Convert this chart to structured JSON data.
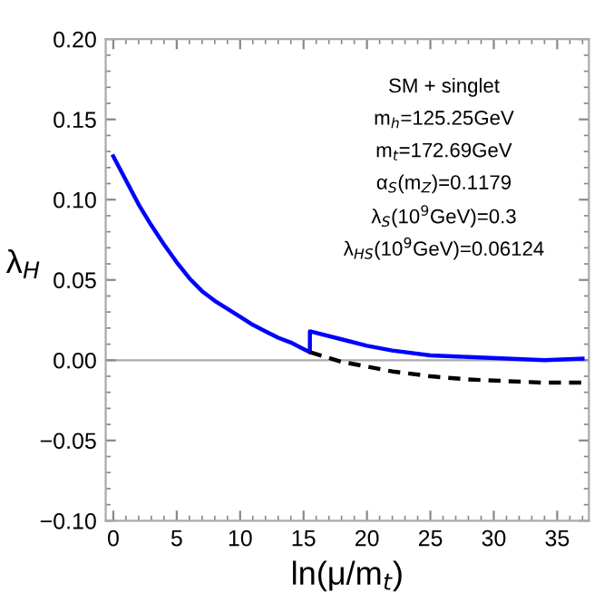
{
  "chart_data": {
    "type": "line",
    "xlabel": "ln(μ/m$_{t}$)",
    "ylabel": "λ$_{H}$",
    "annotations": [
      "SM + singlet",
      "m$_{h}$=125.25GeV",
      "m$_{t}$=172.69GeV",
      "α$_{S}$(m$_{Z}$)=0.1179",
      "λ$_{S}$(10$^{9}$GeV)=0.3",
      "λ$_{HS}$(10$^{9}$GeV)=0.06124"
    ],
    "series": [
      {
        "color": "#0000ff",
        "line_style": "solid",
        "x": [
          0,
          1,
          2,
          3,
          4,
          5,
          6,
          7,
          8,
          9,
          10,
          11,
          12,
          13,
          14,
          15,
          15.5,
          15.5,
          18,
          20,
          22,
          25,
          28,
          31,
          34,
          37
        ],
        "values": [
          0.127,
          0.112,
          0.097,
          0.084,
          0.072,
          0.061,
          0.051,
          0.043,
          0.037,
          0.032,
          0.027,
          0.022,
          0.018,
          0.014,
          0.011,
          0.007,
          0.005,
          0.018,
          0.013,
          0.009,
          0.006,
          0.003,
          0.002,
          0.001,
          0.0,
          0.001
        ]
      },
      {
        "color": "#000000",
        "line_style": "dashed",
        "x": [
          15.5,
          18,
          20,
          22,
          25,
          28,
          31,
          34,
          37
        ],
        "values": [
          0.005,
          -0.001,
          -0.004,
          -0.007,
          -0.01,
          -0.012,
          -0.013,
          -0.014,
          -0.014
        ]
      }
    ],
    "xlim": [
      -0.6,
      37.5
    ],
    "ylim": [
      -0.1,
      0.2
    ],
    "xticks": [
      0,
      5,
      10,
      15,
      20,
      25,
      30,
      35
    ],
    "yticks": [
      {
        "value": -0.1,
        "label": "−0.10"
      },
      {
        "value": -0.05,
        "label": "−0.05"
      },
      {
        "value": 0,
        "label": "0.00"
      },
      {
        "value": 0.05,
        "label": "0.05"
      },
      {
        "value": 0.1,
        "label": "0.10"
      },
      {
        "value": 0.15,
        "label": "0.15"
      },
      {
        "value": 0.2,
        "label": "0.20"
      }
    ],
    "ref_lines": [
      {
        "axis": "y",
        "value": 0,
        "color": "#aaaaaa"
      }
    ],
    "grid": false,
    "legend": false
  }
}
